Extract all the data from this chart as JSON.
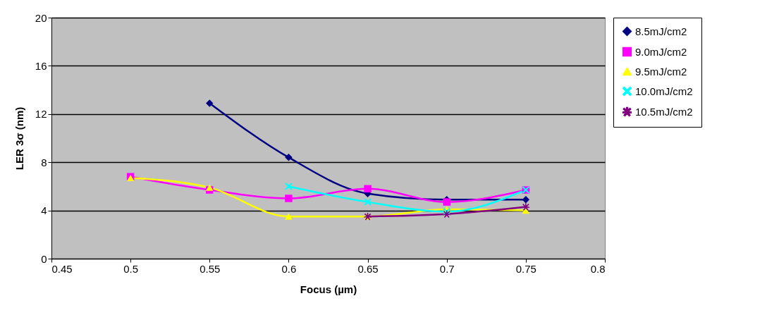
{
  "chart_data": {
    "type": "line",
    "xlabel": "Focus (µm)",
    "ylabel": "LER 3σ (nm)",
    "xlim": [
      0.45,
      0.8
    ],
    "xticks": [
      0.45,
      0.5,
      0.55,
      0.6,
      0.65,
      0.7,
      0.75,
      0.8
    ],
    "ylim": [
      0,
      20
    ],
    "yticks": [
      0,
      4,
      8,
      12,
      16,
      20
    ],
    "grid": "y",
    "legend": "right",
    "x": [
      0.5,
      0.55,
      0.6,
      0.65,
      0.7,
      0.75
    ],
    "series": [
      {
        "name": "8.5mJ/cm2",
        "color": "#000080",
        "marker": "diamond",
        "values": [
          null,
          12.9,
          8.4,
          5.4,
          4.9,
          4.9
        ]
      },
      {
        "name": "9.0mJ/cm2",
        "color": "#ff00ff",
        "marker": "square",
        "values": [
          6.8,
          5.7,
          5.0,
          5.8,
          4.7,
          5.7
        ]
      },
      {
        "name": "9.5mJ/cm2",
        "color": "#ffff00",
        "marker": "triangle",
        "values": [
          6.7,
          5.9,
          3.5,
          3.5,
          4.1,
          4.0
        ]
      },
      {
        "name": "10.0mJ/cm2",
        "color": "#00ffff",
        "marker": "cross",
        "values": [
          null,
          null,
          6.0,
          4.7,
          3.9,
          5.7
        ]
      },
      {
        "name": "10.5mJ/cm2",
        "color": "#800080",
        "marker": "star",
        "values": [
          null,
          null,
          null,
          3.5,
          3.7,
          4.3
        ]
      }
    ]
  }
}
